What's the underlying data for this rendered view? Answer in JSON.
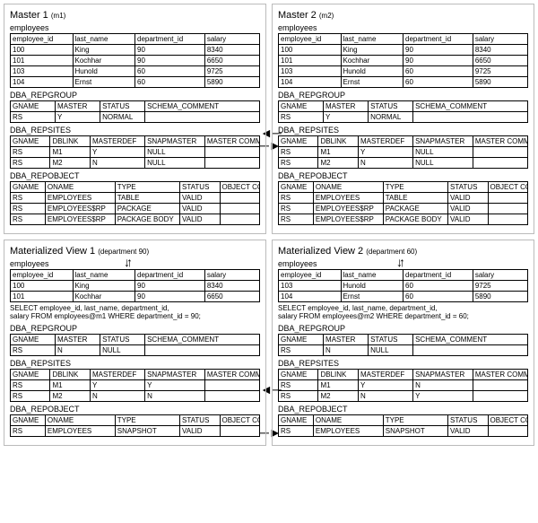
{
  "panels": [
    {
      "title": "Master 1",
      "paren": "(m1)",
      "sql": null,
      "employees": {
        "subtitle": "employees",
        "cols": [
          "employee_id",
          "last_name",
          "department_id",
          "salary"
        ],
        "rows": [
          [
            "100",
            "King",
            "90",
            "8340"
          ],
          [
            "101",
            "Kochhar",
            "90",
            "6650"
          ],
          [
            "103",
            "Hunold",
            "60",
            "9725"
          ],
          [
            "104",
            "Ernst",
            "60",
            "5890"
          ]
        ]
      },
      "repgroup": {
        "subtitle": "DBA_REPGROUP",
        "cols": [
          "GNAME",
          "MASTER",
          "STATUS",
          "SCHEMA_COMMENT"
        ],
        "rows": [
          [
            "RS",
            "Y",
            "NORMAL",
            ""
          ]
        ]
      },
      "repsites": {
        "subtitle": "DBA_REPSITES",
        "cols": [
          "GNAME",
          "DBLINK",
          "MASTERDEF",
          "SNAPMASTER",
          "MASTER COMMENT"
        ],
        "rows": [
          [
            "RS",
            "M1",
            "Y",
            "NULL",
            ""
          ],
          [
            "RS",
            "M2",
            "N",
            "NULL",
            ""
          ]
        ]
      },
      "repobject": {
        "subtitle": "DBA_REPOBJECT",
        "cols": [
          "GNAME",
          "ONAME",
          "TYPE",
          "STATUS",
          "OBJECT COMMENT"
        ],
        "rows": [
          [
            "RS",
            "EMPLOYEES",
            "TABLE",
            "VALID",
            ""
          ],
          [
            "RS",
            "EMPLOYEES$RP",
            "PACKAGE",
            "VALID",
            ""
          ],
          [
            "RS",
            "EMPLOYEES$RP",
            "PACKAGE BODY",
            "VALID",
            ""
          ]
        ]
      }
    },
    {
      "title": "Master 2",
      "paren": "(m2)",
      "sql": null,
      "employees": {
        "subtitle": "employees",
        "cols": [
          "employee_id",
          "last_name",
          "department_id",
          "salary"
        ],
        "rows": [
          [
            "100",
            "King",
            "90",
            "8340"
          ],
          [
            "101",
            "Kochhar",
            "90",
            "6650"
          ],
          [
            "103",
            "Hunold",
            "60",
            "9725"
          ],
          [
            "104",
            "Ernst",
            "60",
            "5890"
          ]
        ]
      },
      "repgroup": {
        "subtitle": "DBA_REPGROUP",
        "cols": [
          "GNAME",
          "MASTER",
          "STATUS",
          "SCHEMA_COMMENT"
        ],
        "rows": [
          [
            "RS",
            "Y",
            "NORMAL",
            ""
          ]
        ]
      },
      "repsites": {
        "subtitle": "DBA_REPSITES",
        "cols": [
          "GNAME",
          "DBLINK",
          "MASTERDEF",
          "SNAPMASTER",
          "MASTER COMMENT"
        ],
        "rows": [
          [
            "RS",
            "M1",
            "Y",
            "NULL",
            ""
          ],
          [
            "RS",
            "M2",
            "N",
            "NULL",
            ""
          ]
        ]
      },
      "repobject": {
        "subtitle": "DBA_REPOBJECT",
        "cols": [
          "GNAME",
          "ONAME",
          "TYPE",
          "STATUS",
          "OBJECT COMMENT"
        ],
        "rows": [
          [
            "RS",
            "EMPLOYEES",
            "TABLE",
            "VALID",
            ""
          ],
          [
            "RS",
            "EMPLOYEES$RP",
            "PACKAGE",
            "VALID",
            ""
          ],
          [
            "RS",
            "EMPLOYEES$RP",
            "PACKAGE BODY",
            "VALID",
            ""
          ]
        ]
      }
    },
    {
      "title": "Materialized View 1",
      "paren": "(department 90)",
      "sql": "SELECT employee_id, last_name, department_id,\nsalary FROM employees@m1 WHERE department_id = 90;",
      "employees": {
        "subtitle": "employees",
        "cols": [
          "employee_id",
          "last_name",
          "department_id",
          "salary"
        ],
        "rows": [
          [
            "100",
            "King",
            "90",
            "8340"
          ],
          [
            "101",
            "Kochhar",
            "90",
            "6650"
          ]
        ]
      },
      "repgroup": {
        "subtitle": "DBA_REPGROUP",
        "cols": [
          "GNAME",
          "MASTER",
          "STATUS",
          "SCHEMA_COMMENT"
        ],
        "rows": [
          [
            "RS",
            "N",
            "NULL",
            ""
          ]
        ]
      },
      "repsites": {
        "subtitle": "DBA_REPSITES",
        "cols": [
          "GNAME",
          "DBLINK",
          "MASTERDEF",
          "SNAPMASTER",
          "MASTER COMMENT"
        ],
        "rows": [
          [
            "RS",
            "M1",
            "Y",
            "Y",
            ""
          ],
          [
            "RS",
            "M2",
            "N",
            "N",
            ""
          ]
        ]
      },
      "repobject": {
        "subtitle": "DBA_REPOBJECT",
        "cols": [
          "GNAME",
          "ONAME",
          "TYPE",
          "STATUS",
          "OBJECT COMMENT"
        ],
        "rows": [
          [
            "RS",
            "EMPLOYEES",
            "SNAPSHOT",
            "VALID",
            ""
          ]
        ]
      }
    },
    {
      "title": "Materialized View 2",
      "paren": "(department 60)",
      "sql": "SELECT employee_id, last_name, department_id,\nsalary FROM employees@m2 WHERE department_id = 60;",
      "employees": {
        "subtitle": "employees",
        "cols": [
          "employee_id",
          "last_name",
          "department_id",
          "salary"
        ],
        "rows": [
          [
            "103",
            "Hunold",
            "60",
            "9725"
          ],
          [
            "104",
            "Ernst",
            "60",
            "5890"
          ]
        ]
      },
      "repgroup": {
        "subtitle": "DBA_REPGROUP",
        "cols": [
          "GNAME",
          "MASTER",
          "STATUS",
          "SCHEMA_COMMENT"
        ],
        "rows": [
          [
            "RS",
            "N",
            "NULL",
            ""
          ]
        ]
      },
      "repsites": {
        "subtitle": "DBA_REPSITES",
        "cols": [
          "GNAME",
          "DBLINK",
          "MASTERDEF",
          "SNAPMASTER",
          "MASTER COMMENT"
        ],
        "rows": [
          [
            "RS",
            "M1",
            "Y",
            "N",
            ""
          ],
          [
            "RS",
            "M2",
            "N",
            "Y",
            ""
          ]
        ]
      },
      "repobject": {
        "subtitle": "DBA_REPOBJECT",
        "cols": [
          "GNAME",
          "ONAME",
          "TYPE",
          "STATUS",
          "OBJECT COMMENT"
        ],
        "rows": [
          [
            "RS",
            "EMPLOYEES",
            "SNAPSHOT",
            "VALID",
            ""
          ]
        ]
      }
    }
  ],
  "arrows": {
    "left": "◄─",
    "right": "─►",
    "down_up": "↓↑"
  },
  "table_sections": [
    "employees",
    "repgroup",
    "repsites",
    "repobject"
  ],
  "col_widths": {
    "employees": [
      "25%",
      "25%",
      "28%",
      "22%"
    ],
    "repgroup": [
      "18%",
      "18%",
      "18%",
      "46%"
    ],
    "repsites": [
      "16%",
      "16%",
      "22%",
      "24%",
      "22%"
    ],
    "repobject": [
      "14%",
      "28%",
      "26%",
      "16%",
      "16%"
    ]
  },
  "colors": {
    "border": "#000000",
    "panel_border": "#bbbbbb",
    "text": "#000000",
    "bg": "#ffffff"
  }
}
